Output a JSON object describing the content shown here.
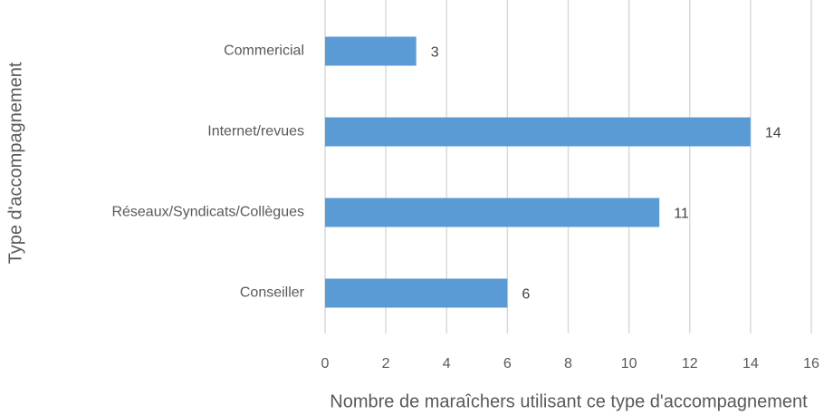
{
  "chart_data": {
    "type": "hbar",
    "categories": [
      "Commericial",
      "Internet/revues",
      "Réseaux/Syndicats/Collègues",
      "Conseiller"
    ],
    "values": [
      3,
      14,
      11,
      6
    ],
    "color": "#5b9bd5",
    "xlabel": "Nombre de maraîchers utilisant ce type d'accompagnement",
    "ylabel": "Type d'accompagnement",
    "xlim": [
      0,
      16
    ],
    "xticks": [
      0,
      2,
      4,
      6,
      8,
      10,
      12,
      14,
      16
    ],
    "grid": true
  }
}
